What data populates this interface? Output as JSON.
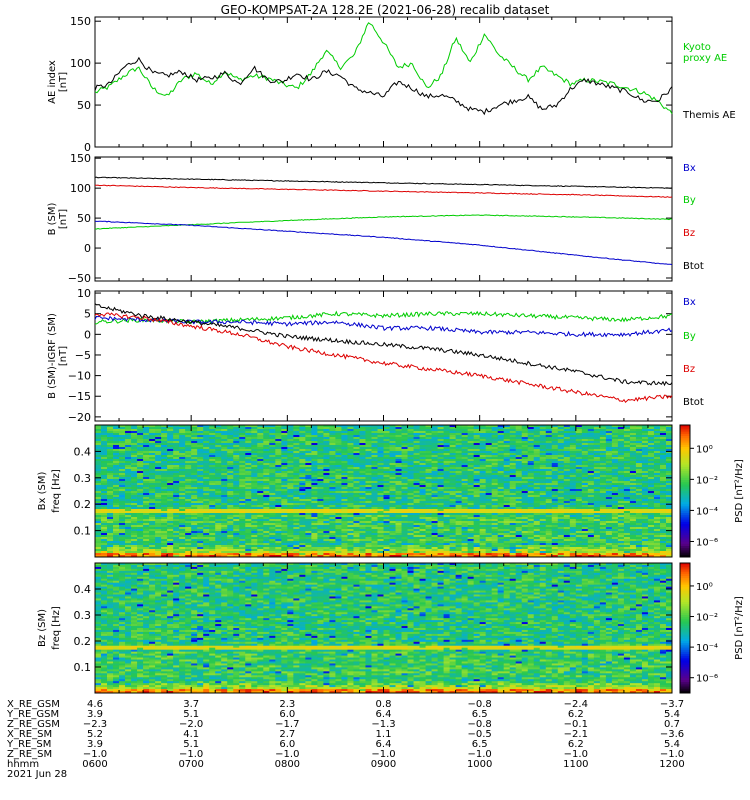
{
  "title": "GEO-KOMPSAT-2A 128.2E (2021-06-28) recalib dataset",
  "colors": {
    "black": "#000000",
    "red": "#dd0000",
    "green": "#00cc00",
    "blue": "#0000cc"
  },
  "chart_data": [
    {
      "type": "line",
      "ylabel": [
        "AE index",
        "[nT]"
      ],
      "ylim": [
        0,
        155
      ],
      "yticks": [
        0,
        50,
        100,
        150
      ],
      "xlim": [
        0,
        6
      ],
      "series": [
        {
          "name": "Kyoto proxy AE",
          "color": "#00cc00",
          "x": [
            0,
            0.15,
            0.3,
            0.45,
            0.6,
            0.75,
            0.9,
            1.05,
            1.2,
            1.35,
            1.5,
            1.65,
            1.8,
            1.95,
            2.1,
            2.25,
            2.4,
            2.55,
            2.7,
            2.85,
            3.0,
            3.15,
            3.3,
            3.45,
            3.6,
            3.75,
            3.9,
            4.05,
            4.2,
            4.35,
            4.5,
            4.65,
            4.8,
            4.95,
            5.1,
            5.25,
            5.4,
            5.55,
            5.7,
            5.85,
            6.0
          ],
          "y": [
            65,
            72,
            85,
            95,
            70,
            60,
            80,
            88,
            75,
            90,
            80,
            85,
            82,
            75,
            70,
            88,
            115,
            95,
            110,
            150,
            125,
            95,
            100,
            70,
            85,
            130,
            100,
            135,
            110,
            95,
            80,
            95,
            85,
            75,
            80,
            78,
            75,
            70,
            65,
            55,
            40
          ]
        },
        {
          "name": "Themis AE",
          "color": "#000000",
          "x": [
            0,
            0.15,
            0.3,
            0.45,
            0.6,
            0.75,
            0.9,
            1.05,
            1.2,
            1.35,
            1.5,
            1.65,
            1.8,
            1.95,
            2.1,
            2.25,
            2.4,
            2.55,
            2.7,
            2.85,
            3.0,
            3.15,
            3.3,
            3.45,
            3.6,
            3.75,
            3.9,
            4.05,
            4.2,
            4.35,
            4.5,
            4.65,
            4.8,
            4.95,
            5.1,
            5.25,
            5.4,
            5.55,
            5.7,
            5.85,
            6.0
          ],
          "y": [
            70,
            75,
            95,
            105,
            88,
            85,
            90,
            80,
            82,
            88,
            75,
            95,
            80,
            78,
            88,
            80,
            90,
            85,
            70,
            65,
            60,
            78,
            70,
            60,
            62,
            55,
            45,
            42,
            50,
            55,
            60,
            45,
            50,
            70,
            80,
            75,
            70,
            65,
            55,
            55,
            70
          ]
        }
      ],
      "legend": [
        "Kyoto",
        "proxy AE",
        "Themis AE"
      ]
    },
    {
      "type": "line",
      "ylabel": [
        "B (SM)",
        "[nT]"
      ],
      "ylim": [
        -55,
        152
      ],
      "yticks": [
        -50,
        0,
        50,
        100,
        150
      ],
      "xlim": [
        0,
        6
      ],
      "series": [
        {
          "name": "Btot",
          "color": "#000000",
          "x": [
            0,
            1,
            2,
            3,
            4,
            5,
            6
          ],
          "y": [
            118,
            115,
            112,
            109,
            106,
            103,
            100
          ]
        },
        {
          "name": "Bz",
          "color": "#dd0000",
          "x": [
            0,
            1,
            2,
            3,
            4,
            5,
            6
          ],
          "y": [
            105,
            101,
            98,
            95,
            92,
            89,
            85
          ]
        },
        {
          "name": "By",
          "color": "#00cc00",
          "x": [
            0,
            1,
            2,
            3,
            4,
            5,
            6
          ],
          "y": [
            32,
            39,
            46,
            52,
            55,
            52,
            48
          ]
        },
        {
          "name": "Bx",
          "color": "#0000cc",
          "x": [
            0,
            1,
            2,
            3,
            4,
            5,
            6
          ],
          "y": [
            45,
            38,
            28,
            18,
            5,
            -12,
            -28
          ]
        }
      ],
      "legend": [
        "Bx",
        "By",
        "Bz",
        "Btot"
      ]
    },
    {
      "type": "line",
      "ylabel": [
        "B (SM)-IGRF (SM)",
        "[nT]"
      ],
      "ylim": [
        -21,
        10.5
      ],
      "yticks": [
        -20,
        -15,
        -10,
        -5,
        0,
        5,
        10
      ],
      "xlim": [
        0,
        6
      ],
      "series": [
        {
          "name": "By",
          "color": "#00cc00",
          "x": [
            0,
            0.5,
            1,
            1.5,
            2,
            2.5,
            3,
            3.5,
            4,
            4.5,
            5,
            5.5,
            6
          ],
          "y": [
            3,
            3.5,
            3,
            3.5,
            4,
            5,
            4.5,
            5,
            5,
            4.5,
            4,
            3.5,
            4.5
          ]
        },
        {
          "name": "Bx",
          "color": "#0000cc",
          "x": [
            0,
            0.5,
            1,
            1.5,
            2,
            2.5,
            3,
            3.5,
            4,
            4.5,
            5,
            5.5,
            6
          ],
          "y": [
            4,
            3.5,
            3,
            3,
            2.5,
            3,
            1.5,
            1.5,
            0.5,
            0.5,
            0,
            0,
            1
          ]
        },
        {
          "name": "Btot",
          "color": "#000000",
          "x": [
            0,
            0.5,
            1,
            1.5,
            2,
            2.5,
            3,
            3.5,
            4,
            4.5,
            5,
            5.5,
            6
          ],
          "y": [
            7,
            4.5,
            3,
            1.5,
            -0.5,
            -1.5,
            -2.5,
            -3.5,
            -5,
            -7,
            -9,
            -11.5,
            -12
          ]
        },
        {
          "name": "Bz",
          "color": "#dd0000",
          "x": [
            0,
            0.5,
            1,
            1.5,
            2,
            2.5,
            3,
            3.5,
            4,
            4.5,
            5,
            5.5,
            6
          ],
          "y": [
            5,
            4,
            2,
            0,
            -3,
            -5,
            -7,
            -8.5,
            -10,
            -12,
            -14,
            -16,
            -15
          ]
        }
      ],
      "legend": [
        "Bx",
        "By",
        "Bz",
        "Btot"
      ]
    },
    {
      "type": "heatmap",
      "ylabel": [
        "Bx (SM)",
        "freq [Hz]"
      ],
      "ylim": [
        0,
        0.5
      ],
      "yticks": [
        0.1,
        0.2,
        0.3,
        0.4
      ],
      "colorbar_label": "PSD [nT²/Hz]",
      "colorbar_ticks": [
        "10⁰",
        "10⁻²",
        "10⁻⁴",
        "10⁻⁶"
      ],
      "colorbar_tick_exponents": [
        0,
        -2,
        -4,
        -6
      ],
      "colorbar_range": [
        -7,
        1.5
      ]
    },
    {
      "type": "heatmap",
      "ylabel": [
        "Bz (SM)",
        "freq [Hz]"
      ],
      "ylim": [
        0,
        0.5
      ],
      "yticks": [
        0.1,
        0.2,
        0.3,
        0.4
      ],
      "colorbar_label": "PSD [nT²/Hz]",
      "colorbar_ticks": [
        "10⁰",
        "10⁻²",
        "10⁻⁴",
        "10⁻⁶"
      ],
      "colorbar_tick_exponents": [
        0,
        -2,
        -4,
        -6
      ],
      "colorbar_range": [
        -7,
        1.5
      ]
    }
  ],
  "ephemeris": {
    "labels": [
      "X_RE_GSM",
      "Y_RE_GSM",
      "Z_RE_GSM",
      "X_RE_SM",
      "Y_RE_SM",
      "Z_RE_SM",
      "hhmm",
      "2021 Jun 28"
    ],
    "rows": [
      [
        "4.6",
        "3.7",
        "2.3",
        "0.8",
        "−0.8",
        "−2.4",
        "−3.7"
      ],
      [
        "3.9",
        "5.1",
        "6.0",
        "6.4",
        "6.5",
        "6.2",
        "5.4"
      ],
      [
        "−2.3",
        "−2.0",
        "−1.7",
        "−1.3",
        "−0.8",
        "−0.1",
        "0.7"
      ],
      [
        "5.2",
        "4.1",
        "2.7",
        "1.1",
        "−0.5",
        "−2.1",
        "−3.6"
      ],
      [
        "3.9",
        "5.1",
        "6.0",
        "6.4",
        "6.5",
        "6.2",
        "5.4"
      ],
      [
        "−1.0",
        "−1.0",
        "−1.0",
        "−1.0",
        "−1.0",
        "−1.0",
        "−1.0"
      ],
      [
        "0600",
        "0700",
        "0800",
        "0900",
        "1000",
        "1100",
        "1200"
      ]
    ]
  }
}
